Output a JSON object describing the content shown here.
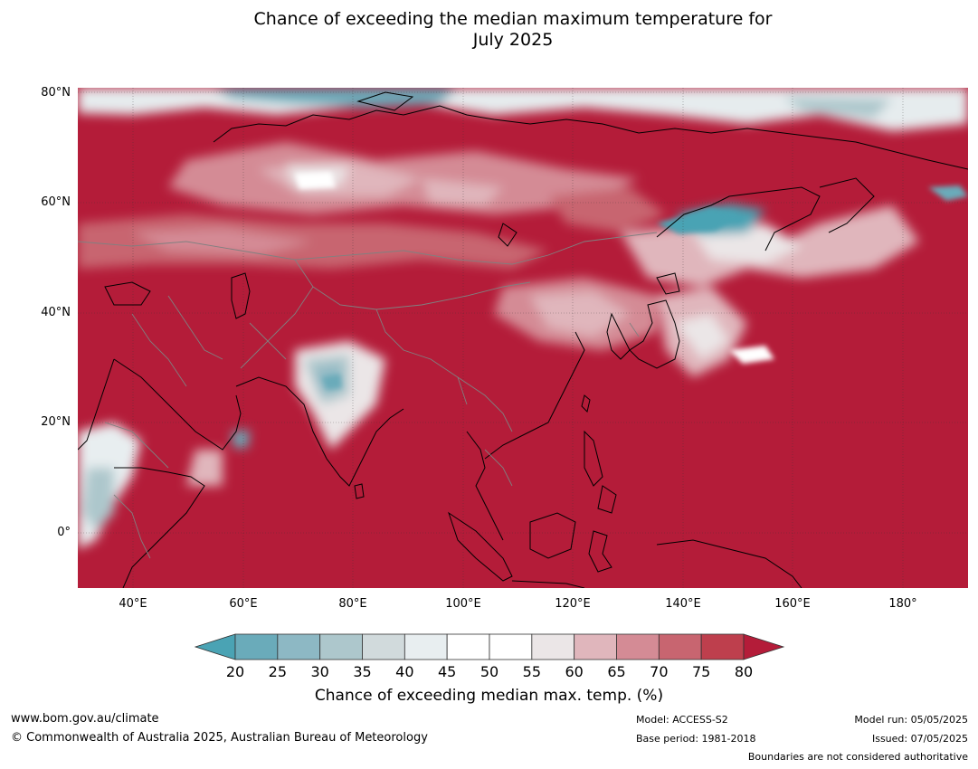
{
  "header": {
    "title_line1": "Chance of exceeding the median maximum temperature for",
    "title_line2": "July 2025"
  },
  "map": {
    "lat_labels": [
      "80°N",
      "60°N",
      "40°N",
      "20°N",
      "0°"
    ],
    "lon_labels": [
      "40°E",
      "60°E",
      "80°E",
      "100°E",
      "120°E",
      "140°E",
      "160°E",
      "180°"
    ],
    "dominant_color": "#b41c39",
    "ocean_color": "#b41c39"
  },
  "legend": {
    "ticks": [
      "20",
      "25",
      "30",
      "35",
      "40",
      "45",
      "50",
      "55",
      "60",
      "65",
      "70",
      "75",
      "80"
    ],
    "colors": [
      "#4aa3b4",
      "#6aabba",
      "#8db8c4",
      "#adc7cc",
      "#d1dadc",
      "#e8eef0",
      "#ffffff",
      "#ffffff",
      "#ebe6e7",
      "#e0b6bc",
      "#d48b95",
      "#c86570",
      "#be3f4d",
      "#b41c39"
    ],
    "label": "Chance of exceeding median max. temp. (%)"
  },
  "footer": {
    "website": "www.bom.gov.au/climate",
    "copyright": "© Commonwealth of Australia 2025, Australian Bureau of Meteorology",
    "model": "Model: ACCESS-S2",
    "base_period": "Base period: 1981-2018",
    "model_run": "Model run: 05/05/2025",
    "issued": "Issued: 07/05/2025",
    "disclaimer": "Boundaries are not considered authoritative"
  }
}
